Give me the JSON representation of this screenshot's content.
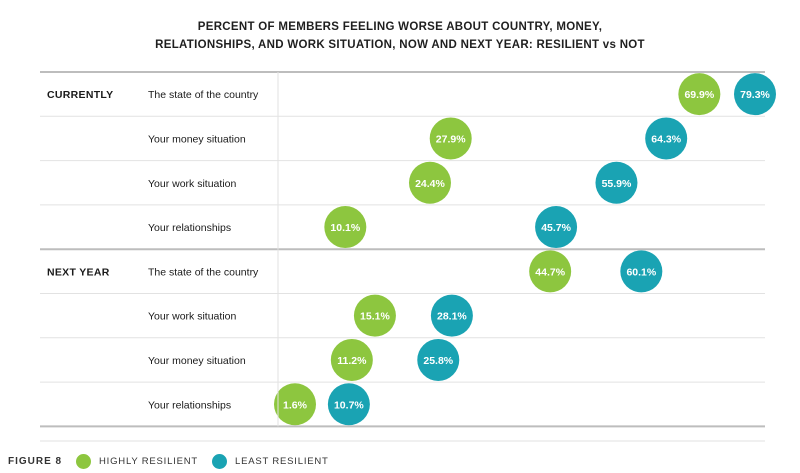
{
  "title": {
    "line1": "PERCENT OF MEMBERS FEELING WORSE ABOUT COUNTRY, MONEY,",
    "line2": "RELATIONSHIPS, AND WORK SITUATION, NOW AND NEXT YEAR: RESILIENT vs NOT"
  },
  "figure_label": "FIGURE 8",
  "colors": {
    "highly": "#8dc63f",
    "least": "#1aa3b3"
  },
  "chart_data": {
    "type": "scatter",
    "title": "PERCENT OF MEMBERS FEELING WORSE ABOUT COUNTRY, MONEY, RELATIONSHIPS, AND WORK SITUATION, NOW AND NEXT YEAR: RESILIENT vs NOT",
    "xlim": [
      0,
      100
    ],
    "legend_position": "bottom-left",
    "series": [
      {
        "name": "HIGHLY RESILIENT",
        "color": "#8dc63f"
      },
      {
        "name": "LEAST RESILIENT",
        "color": "#1aa3b3"
      }
    ],
    "groups": [
      {
        "label": "CURRENTLY",
        "rows": [
          {
            "label": "The state of the country",
            "values": [
              69.9,
              79.3
            ]
          },
          {
            "label": "Your money situation",
            "values": [
              27.9,
              64.3
            ]
          },
          {
            "label": "Your work situation",
            "values": [
              24.4,
              55.9
            ]
          },
          {
            "label": "Your relationships",
            "values": [
              10.1,
              45.7
            ]
          }
        ]
      },
      {
        "label": "NEXT YEAR",
        "rows": [
          {
            "label": "The state of the country",
            "values": [
              44.7,
              60.1
            ]
          },
          {
            "label": "Your work situation",
            "values": [
              15.1,
              28.1
            ]
          },
          {
            "label": "Your money situation",
            "values": [
              11.2,
              25.8
            ]
          },
          {
            "label": "Your relationships",
            "values": [
              1.6,
              10.7
            ]
          }
        ]
      }
    ]
  }
}
